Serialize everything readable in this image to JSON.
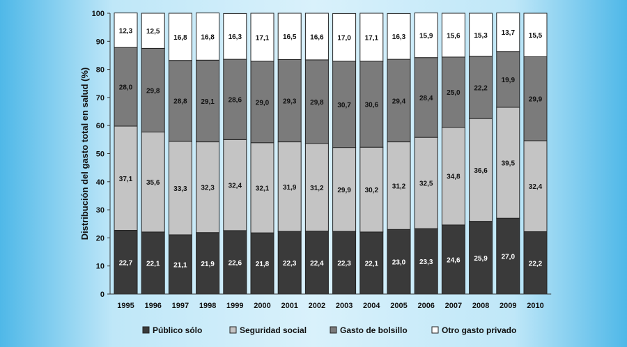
{
  "chart_data": {
    "type": "bar",
    "stacked": true,
    "categories": [
      "1995",
      "1996",
      "1997",
      "1998",
      "1999",
      "2000",
      "2001",
      "2002",
      "2003",
      "2004",
      "2005",
      "2006",
      "2007",
      "2008",
      "2009",
      "2010"
    ],
    "series": [
      {
        "name": "Público sólo",
        "color": "#3a3a3a",
        "label_color": "#ffffff",
        "values": [
          22.7,
          22.1,
          21.1,
          21.9,
          22.6,
          21.8,
          22.3,
          22.4,
          22.3,
          22.1,
          23.0,
          23.3,
          24.6,
          25.9,
          27.0,
          22.2
        ],
        "labels": [
          "22,7",
          "22,1",
          "21,1",
          "21,9",
          "22,6",
          "21,8",
          "22,3",
          "22,4",
          "22,3",
          "22,1",
          "23,0",
          "23,3",
          "24,6",
          "25,9",
          "27,0",
          "22,2"
        ]
      },
      {
        "name": "Seguridad social",
        "color": "#c4c4c4",
        "label_color": "#111111",
        "values": [
          37.1,
          35.6,
          33.3,
          32.3,
          32.4,
          32.1,
          31.9,
          31.2,
          29.9,
          30.2,
          31.2,
          32.5,
          34.8,
          36.6,
          39.5,
          32.4
        ],
        "labels": [
          "37,1",
          "35,6",
          "33,3",
          "32,3",
          "32,4",
          "32,1",
          "31,9",
          "31,2",
          "29,9",
          "30,2",
          "31,2",
          "32,5",
          "34,8",
          "36,6",
          "39,5",
          "32,4"
        ]
      },
      {
        "name": "Gasto de bolsillo",
        "color": "#7b7b7b",
        "label_color": "#111111",
        "values": [
          28.0,
          29.8,
          28.8,
          29.1,
          28.6,
          29.0,
          29.3,
          29.8,
          30.7,
          30.6,
          29.4,
          28.4,
          25.0,
          22.2,
          19.9,
          29.9
        ],
        "labels": [
          "28,0",
          "29,8",
          "28,8",
          "29,1",
          "28,6",
          "29,0",
          "29,3",
          "29,8",
          "30,7",
          "30,6",
          "29,4",
          "28,4",
          "25,0",
          "22,2",
          "19,9",
          "29,9"
        ]
      },
      {
        "name": "Otro gasto privado",
        "color": "#ffffff",
        "label_color": "#111111",
        "values": [
          12.3,
          12.5,
          16.8,
          16.8,
          16.3,
          17.1,
          16.5,
          16.6,
          17.0,
          17.1,
          16.3,
          15.9,
          15.6,
          15.3,
          13.7,
          15.5
        ],
        "labels": [
          "12,3",
          "12,5",
          "16,8",
          "16,8",
          "16,3",
          "17,1",
          "16,5",
          "16,6",
          "17,0",
          "17,1",
          "16,3",
          "15,9",
          "15,6",
          "15,3",
          "13,7",
          "15,5"
        ]
      }
    ],
    "ylabel": "Distribución del gasto total en salud (%)",
    "ylim": [
      0,
      100
    ],
    "yticks": [
      "0",
      "10",
      "20",
      "30",
      "40",
      "50",
      "60",
      "70",
      "80",
      "90",
      "100"
    ],
    "grid": false,
    "legend_position": "bottom"
  }
}
